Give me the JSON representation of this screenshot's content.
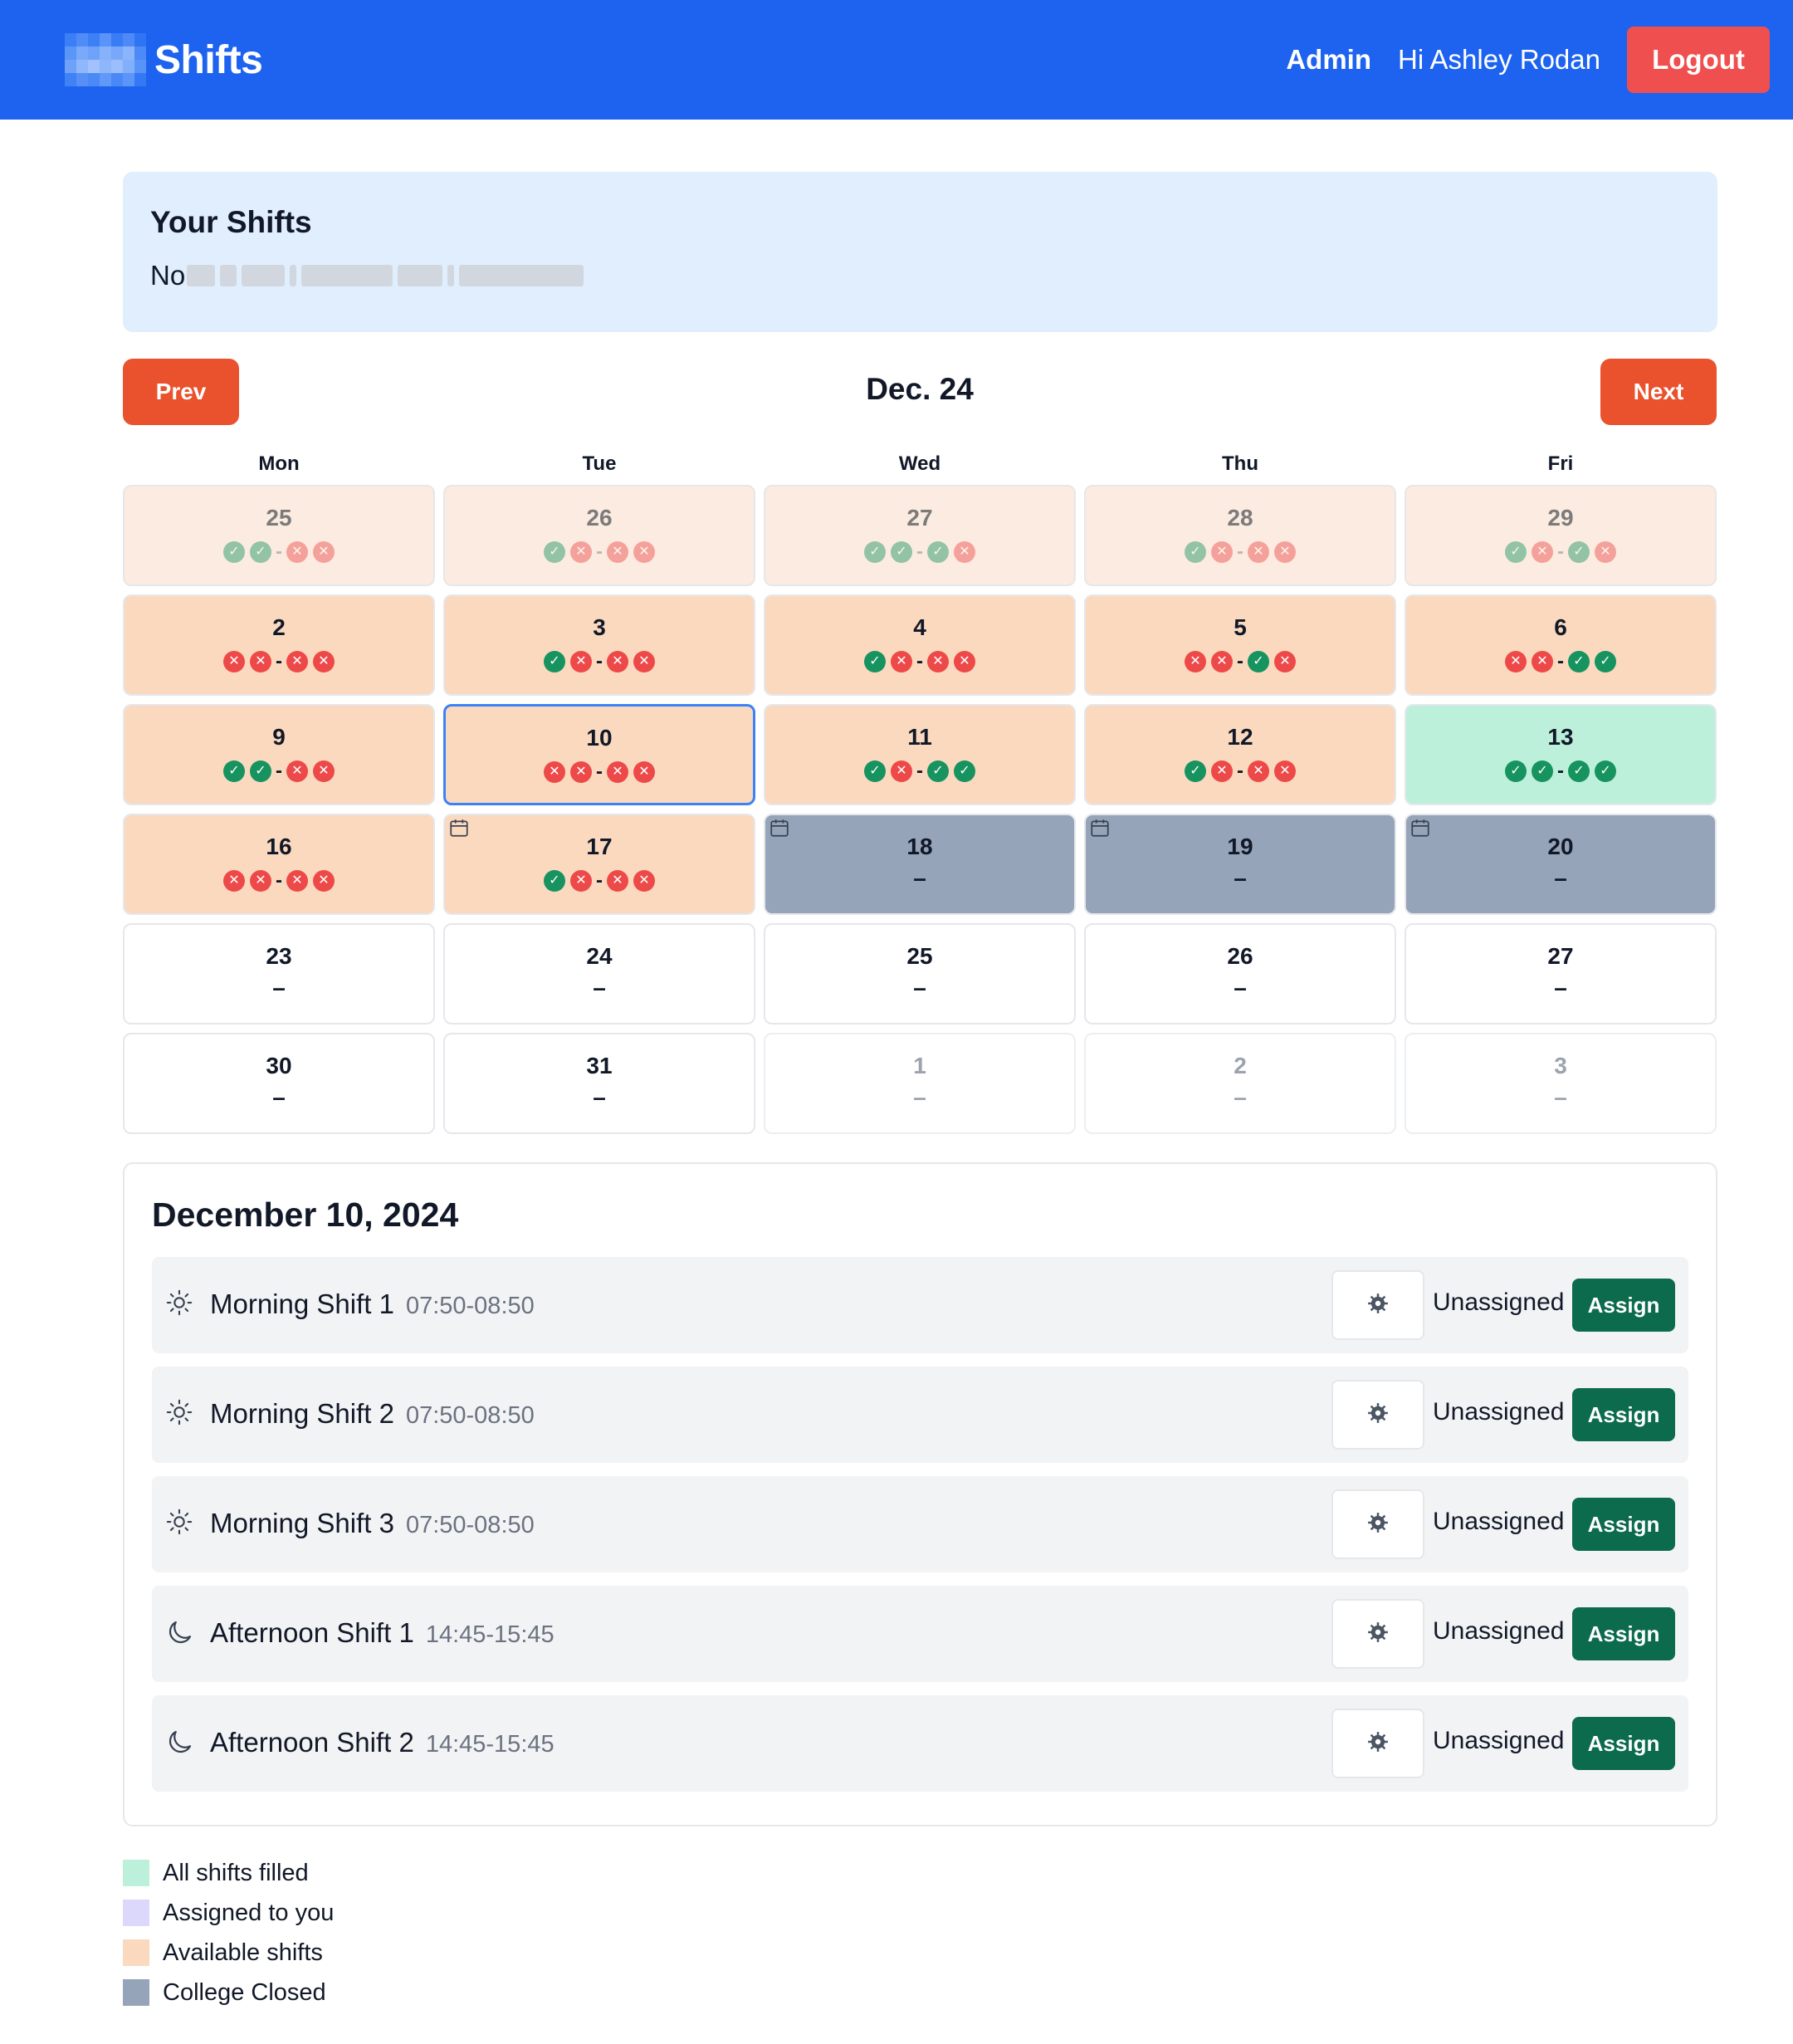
{
  "header": {
    "brand_title": "Shifts",
    "admin_link": "Admin",
    "greeting": "Hi Ashley Rodan",
    "logout_label": "Logout",
    "brand_color": "#1d63f0"
  },
  "your_shifts": {
    "title": "Your Shifts",
    "first_line_prefix": "No"
  },
  "calendar": {
    "prev_label": "Prev",
    "next_label": "Next",
    "month_label": "Dec. 24",
    "weekdays": [
      "Mon",
      "Tue",
      "Wed",
      "Thu",
      "Fri"
    ],
    "days": [
      {
        "num": "25",
        "state": "past",
        "ind": [
          "ok",
          "ok",
          "no",
          "no"
        ]
      },
      {
        "num": "26",
        "state": "past",
        "ind": [
          "ok",
          "no",
          "no",
          "no"
        ]
      },
      {
        "num": "27",
        "state": "past",
        "ind": [
          "ok",
          "ok",
          "ok",
          "no"
        ]
      },
      {
        "num": "28",
        "state": "past",
        "ind": [
          "ok",
          "no",
          "no",
          "no"
        ]
      },
      {
        "num": "29",
        "state": "past",
        "ind": [
          "ok",
          "no",
          "ok",
          "no"
        ]
      },
      {
        "num": "2",
        "state": "avail",
        "ind": [
          "no",
          "no",
          "no",
          "no"
        ]
      },
      {
        "num": "3",
        "state": "avail",
        "ind": [
          "ok",
          "no",
          "no",
          "no"
        ]
      },
      {
        "num": "4",
        "state": "avail",
        "ind": [
          "ok",
          "no",
          "no",
          "no"
        ]
      },
      {
        "num": "5",
        "state": "avail",
        "ind": [
          "no",
          "no",
          "ok",
          "no"
        ]
      },
      {
        "num": "6",
        "state": "avail",
        "ind": [
          "no",
          "no",
          "ok",
          "ok"
        ]
      },
      {
        "num": "9",
        "state": "avail",
        "ind": [
          "ok",
          "ok",
          "no",
          "no"
        ]
      },
      {
        "num": "10",
        "state": "avail",
        "ind": [
          "no",
          "no",
          "no",
          "no"
        ],
        "selected": true
      },
      {
        "num": "11",
        "state": "avail",
        "ind": [
          "ok",
          "no",
          "ok",
          "ok"
        ]
      },
      {
        "num": "12",
        "state": "avail",
        "ind": [
          "ok",
          "no",
          "no",
          "no"
        ]
      },
      {
        "num": "13",
        "state": "filled",
        "ind": [
          "ok",
          "ok",
          "ok",
          "ok"
        ]
      },
      {
        "num": "16",
        "state": "avail",
        "ind": [
          "no",
          "no",
          "no",
          "no"
        ]
      },
      {
        "num": "17",
        "state": "avail",
        "ind": [
          "ok",
          "no",
          "no",
          "no"
        ],
        "cal_icon": true
      },
      {
        "num": "18",
        "state": "closed",
        "dash": "–",
        "cal_icon": true
      },
      {
        "num": "19",
        "state": "closed",
        "dash": "–",
        "cal_icon": true
      },
      {
        "num": "20",
        "state": "closed",
        "dash": "–",
        "cal_icon": true
      },
      {
        "num": "23",
        "state": "empty",
        "dash": "–"
      },
      {
        "num": "24",
        "state": "empty",
        "dash": "–"
      },
      {
        "num": "25",
        "state": "empty",
        "dash": "–"
      },
      {
        "num": "26",
        "state": "empty",
        "dash": "–"
      },
      {
        "num": "27",
        "state": "empty",
        "dash": "–"
      },
      {
        "num": "30",
        "state": "empty",
        "dash": "–"
      },
      {
        "num": "31",
        "state": "empty",
        "dash": "–"
      },
      {
        "num": "1",
        "state": "outside",
        "dash": "–"
      },
      {
        "num": "2",
        "state": "outside",
        "dash": "–"
      },
      {
        "num": "3",
        "state": "outside",
        "dash": "–"
      }
    ]
  },
  "detail": {
    "date_title": "December 10, 2024",
    "shifts": [
      {
        "name": "Morning Shift 1",
        "time": "07:50-08:50",
        "icon": "sun-icon",
        "status": "Unassigned",
        "action": "Assign"
      },
      {
        "name": "Morning Shift 2",
        "time": "07:50-08:50",
        "icon": "sun-icon",
        "status": "Unassigned",
        "action": "Assign"
      },
      {
        "name": "Morning Shift 3",
        "time": "07:50-08:50",
        "icon": "sun-icon",
        "status": "Unassigned",
        "action": "Assign"
      },
      {
        "name": "Afternoon Shift 1",
        "time": "14:45-15:45",
        "icon": "moon-icon",
        "status": "Unassigned",
        "action": "Assign"
      },
      {
        "name": "Afternoon Shift 2",
        "time": "14:45-15:45",
        "icon": "moon-icon",
        "status": "Unassigned",
        "action": "Assign"
      }
    ]
  },
  "legend": [
    {
      "label": "All shifts filled",
      "color": "#bdf0da"
    },
    {
      "label": "Assigned to you",
      "color": "#dcd8fb"
    },
    {
      "label": "Available shifts",
      "color": "#fad9bf"
    },
    {
      "label": "College Closed",
      "color": "#95a4b8"
    }
  ]
}
